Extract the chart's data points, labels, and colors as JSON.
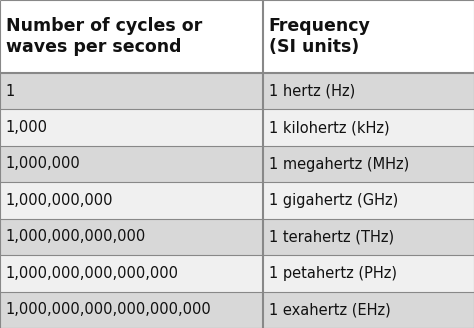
{
  "col1_header": "Number of cycles or\nwaves per second",
  "col2_header": "Frequency\n(SI units)",
  "rows": [
    [
      "1",
      "1 hertz (Hz)"
    ],
    [
      "1,000",
      "1 kilohertz (kHz)"
    ],
    [
      "1,000,000",
      "1 megahertz (MHz)"
    ],
    [
      "1,000,000,000",
      "1 gigahertz (GHz)"
    ],
    [
      "1,000,000,000,000",
      "1 terahertz (THz)"
    ],
    [
      "1,000,000,000,000,000",
      "1 petahertz (PHz)"
    ],
    [
      "1,000,000,000,000,000,000",
      "1 exahertz (EHz)"
    ]
  ],
  "header_bg": "#ffffff",
  "row_bg_odd": "#d8d8d8",
  "row_bg_even": "#f0f0f0",
  "border_color": "#888888",
  "header_fontsize": 12.5,
  "row_fontsize": 10.5,
  "col_split": 0.555,
  "fig_width": 4.74,
  "fig_height": 3.28,
  "dpi": 100
}
